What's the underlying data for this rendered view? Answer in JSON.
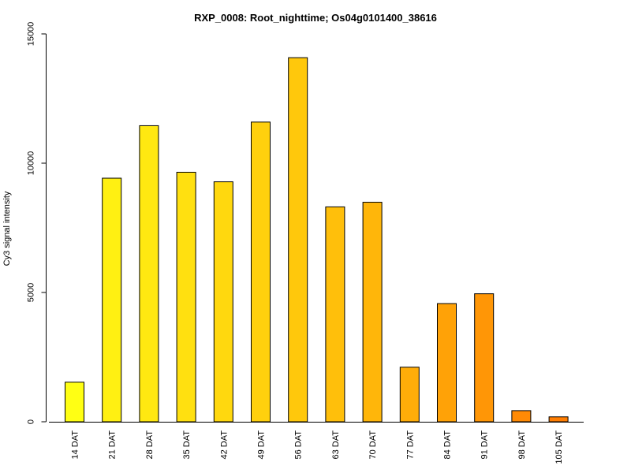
{
  "chart_data": {
    "type": "bar",
    "title": "RXP_0008: Root_nighttime; Os04g0101400_38616",
    "xlabel": "",
    "ylabel": "Cy3 signal intensity",
    "categories": [
      "14 DAT",
      "21 DAT",
      "28 DAT",
      "35 DAT",
      "42 DAT",
      "49 DAT",
      "56 DAT",
      "63 DAT",
      "70 DAT",
      "77 DAT",
      "84 DAT",
      "91 DAT",
      "98 DAT",
      "105 DAT"
    ],
    "values": [
      1530,
      9420,
      11450,
      9650,
      9280,
      11590,
      14080,
      8310,
      8490,
      2110,
      4570,
      4950,
      430,
      190
    ],
    "colors": [
      "#FFFF14",
      "#FFF012",
      "#FFE811",
      "#FFE010",
      "#FFD80E",
      "#FFD00D",
      "#FFC80C",
      "#FFBF0B",
      "#FFB60A",
      "#FFAD09",
      "#FFA207",
      "#FF9606",
      "#FF8A05",
      "#FF7E03"
    ],
    "yticks": [
      0,
      5000,
      10000,
      15000
    ],
    "ytick_labels": [
      "0",
      "5000",
      "10000",
      "15000"
    ],
    "ylim": [
      0,
      15000
    ],
    "grid": false,
    "legend": "none"
  }
}
